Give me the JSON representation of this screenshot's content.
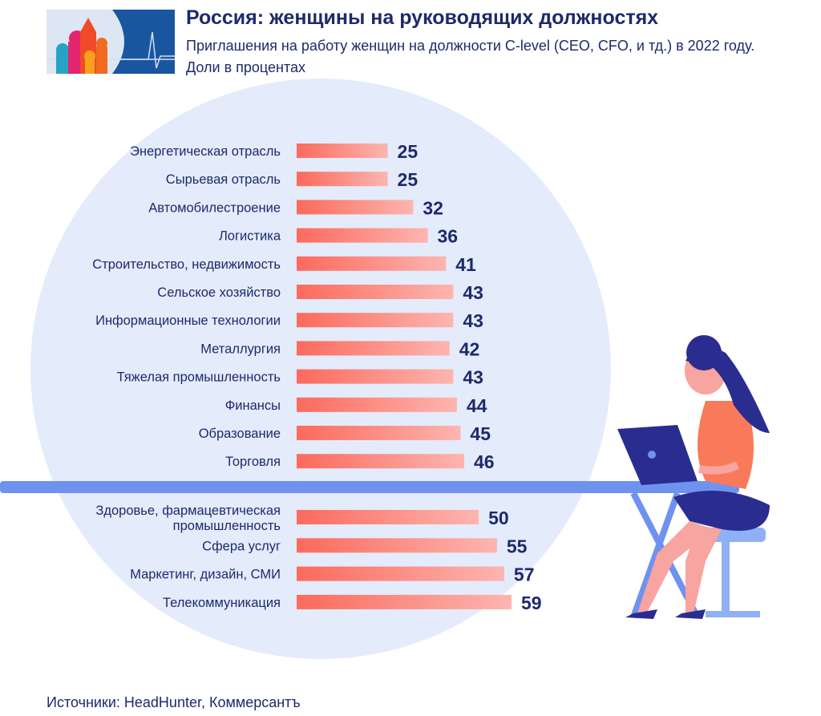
{
  "header": {
    "title": "Россия: женщины на руководящих должностях",
    "subtitle": "Приглашения на работу женщин на должности C-level (CEO, CFO, и тд.) в 2022 году. Доли в процентах"
  },
  "footer": {
    "source": "Источники: HeadHunter, Коммерсантъ"
  },
  "colors": {
    "text": "#1d2a6b",
    "bar_start": "#fb6a5c",
    "bar_end": "#fdb5b0",
    "circle": "#e4ebfb",
    "band": "#6f92f0",
    "logo_blue": "#1a56a0"
  },
  "chart_data": {
    "type": "bar",
    "orientation": "horizontal",
    "title": "Россия: женщины на руководящих должностях",
    "subtitle": "Приглашения на работу женщин на должности C-level (CEO, CFO, и тд.) в 2022 году. Доли в процентах",
    "categories": [
      "Энергетическая отрасль",
      "Сырьевая отрасль",
      "Автомобилестроение",
      "Логистика",
      "Строительство, недвижимость",
      "Сельское хозяйство",
      "Информационные технологии",
      "Металлургия",
      "Тяжелая промышленность",
      "Финансы",
      "Образование",
      "Торговля",
      "Здоровье, фармацевтическая промышленность",
      "Сфера услуг",
      "Маркетинг, дизайн, СМИ",
      "Телекоммуникация"
    ],
    "values": [
      25,
      25,
      32,
      36,
      41,
      43,
      43,
      42,
      43,
      44,
      45,
      46,
      50,
      55,
      57,
      59
    ],
    "unit": "%",
    "xlim": [
      0,
      60
    ],
    "grid": false,
    "legend": "none"
  }
}
